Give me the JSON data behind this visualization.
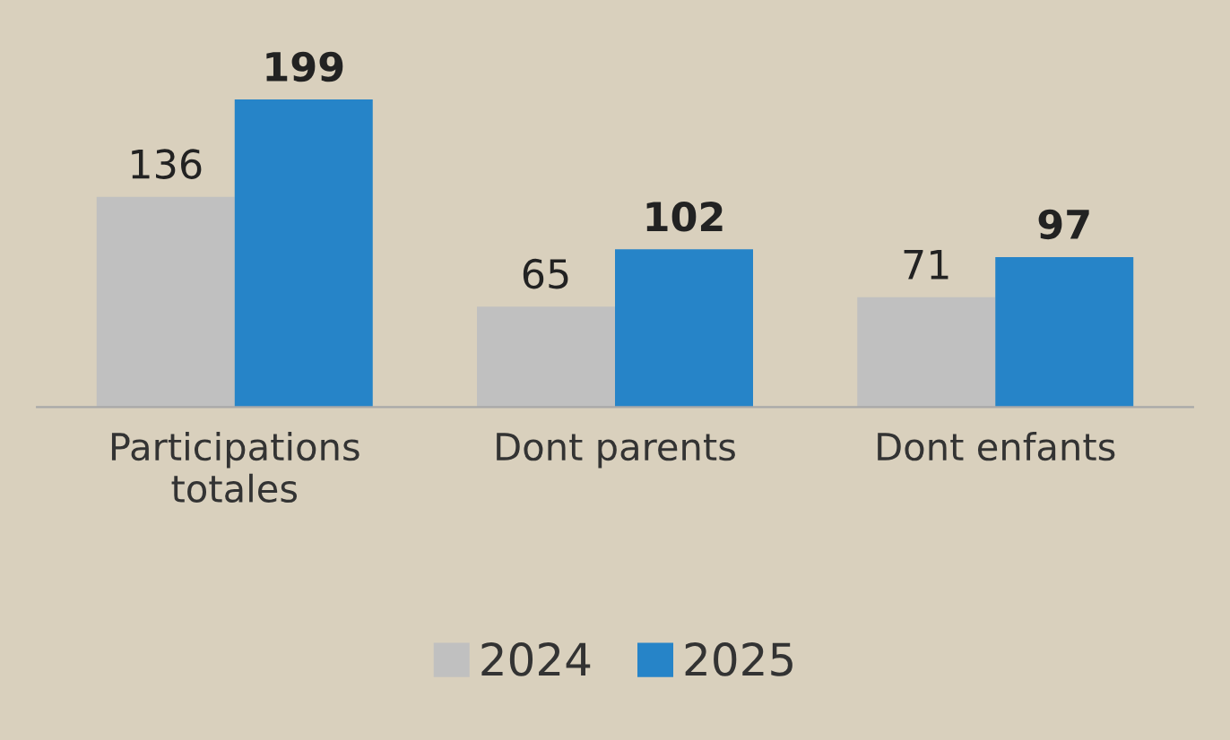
{
  "chart_data": {
    "type": "bar",
    "categories": [
      "Participations\ntotales",
      "Dont parents",
      "Dont enfants"
    ],
    "series": [
      {
        "name": "2024",
        "color": "#c0c0c0",
        "values": [
          136,
          65,
          71
        ]
      },
      {
        "name": "2025",
        "color": "#2684c8",
        "values": [
          199,
          102,
          97
        ]
      }
    ],
    "data_labels": true,
    "legend": "bottom",
    "grid": false
  }
}
